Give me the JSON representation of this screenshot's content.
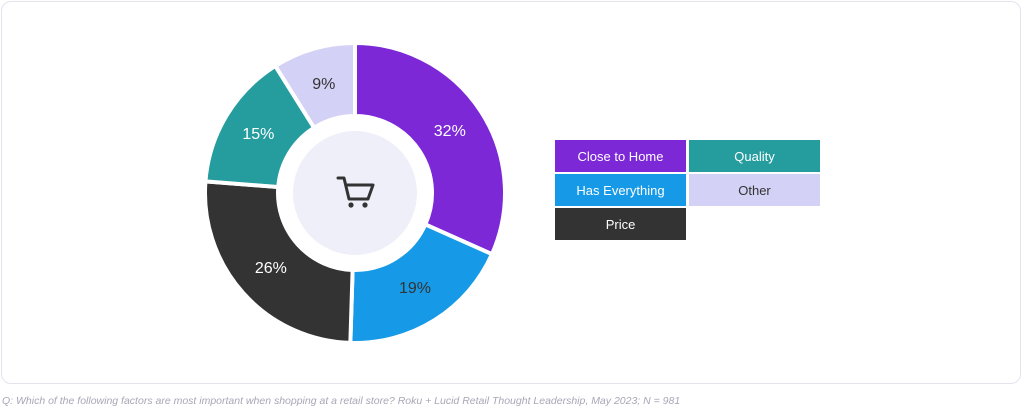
{
  "chart_data": {
    "type": "pie",
    "variant": "donut",
    "categories": [
      "Close to Home",
      "Has Everything",
      "Price",
      "Quality",
      "Other"
    ],
    "values": [
      32,
      19,
      26,
      15,
      9
    ],
    "labels": [
      "32%",
      "19%",
      "26%",
      "15%",
      "9%"
    ],
    "unit": "%",
    "colors": [
      "#7c28d7",
      "#1699e6",
      "#333333",
      "#259c9e",
      "#d3d1f6"
    ],
    "label_colors": [
      "#ffffff",
      "#333333",
      "#ffffff",
      "#ffffff",
      "#333333"
    ],
    "center_icon": "shopping-cart-icon",
    "center_color": "#efeff9",
    "legend_placement": "right",
    "legend": [
      {
        "label": "Close to Home",
        "color": "#7c28d7",
        "text_color": "#ffffff"
      },
      {
        "label": "Quality",
        "color": "#259c9e",
        "text_color": "#ffffff"
      },
      {
        "label": "Has Everything",
        "color": "#1699e6",
        "text_color": "#ffffff"
      },
      {
        "label": "Other",
        "color": "#d3d1f6",
        "text_color": "#333333"
      },
      {
        "label": "Price",
        "color": "#333333",
        "text_color": "#ffffff"
      }
    ]
  },
  "footnote": "Q: Which of the following factors are most important when shopping at a retail store? Roku + Lucid Retail Thought Leadership, May 2023; N = 981"
}
